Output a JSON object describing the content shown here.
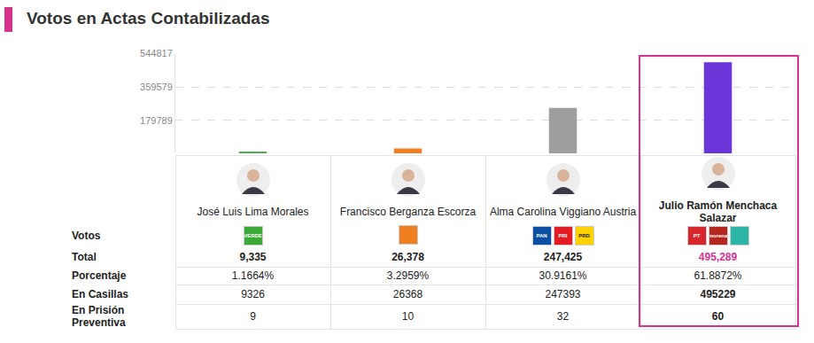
{
  "header": {
    "title": "Votos en Actas Contabilizadas"
  },
  "chart_data": {
    "type": "bar",
    "categories": [
      "José Luis Lima Morales",
      "Francisco Berganza Escorza",
      "Alma Carolina Viggiano Austria",
      "Julio Ramón Menchaca Salazar"
    ],
    "values": [
      9335,
      26378,
      247425,
      495289
    ],
    "colors": [
      "#4caf50",
      "#f07f1f",
      "#9e9e9e",
      "#6a35d9"
    ],
    "ylim": [
      0,
      544817
    ],
    "yticks": [
      179789,
      359579,
      544817
    ],
    "grid": true,
    "tick_labels": "y"
  },
  "table": {
    "row_labels": {
      "votos": "Votos",
      "total": "Total",
      "porcentaje": "Porcentaje",
      "en_casillas": "En Casillas",
      "en_prision_preventiva": "En Prisión Preventiva"
    },
    "logos": [
      [
        {
          "text": "VERDE",
          "color": "#3aa935"
        }
      ],
      [
        {
          "color": "#f07f1f"
        }
      ],
      [
        {
          "text": "PAN",
          "color": "#0a4fa1"
        },
        {
          "text": "PRI",
          "color": "#e31b23"
        },
        {
          "text": "PRD",
          "color": "#ffd200"
        }
      ],
      [
        {
          "text": "PT",
          "color": "#d8262d"
        },
        {
          "text": "morena",
          "color": "#b5261e"
        },
        {
          "color": "#2bb5a7"
        }
      ]
    ],
    "total": [
      "9,335",
      "26,378",
      "247,425",
      "495,289"
    ],
    "porcentaje": [
      "1.1664%",
      "3.2959%",
      "30.9161%",
      "61.8872%"
    ],
    "en_casillas": [
      "9326",
      "26368",
      "247393",
      "495229"
    ],
    "en_prision_preventiva": [
      "9",
      "10",
      "32",
      "60"
    ],
    "highlighted_candidate": "Julio Ramón Menchaca Salazar",
    "highlight_color": "#d6338f"
  }
}
